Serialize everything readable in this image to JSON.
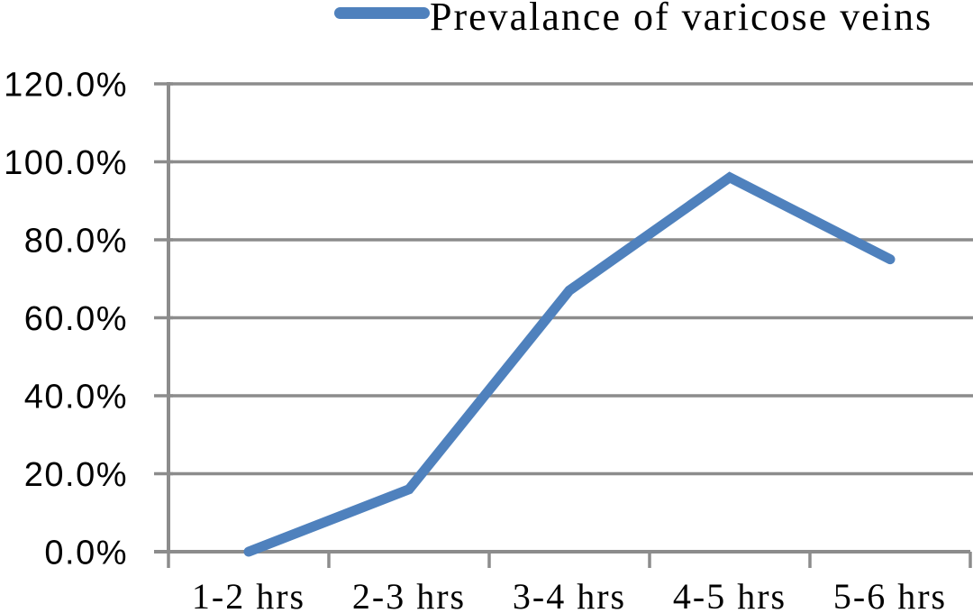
{
  "legend": {
    "label": "Prevalance of varicose veins"
  },
  "chart_data": {
    "type": "line",
    "title": "",
    "xlabel": "",
    "ylabel": "",
    "categories": [
      "1-2 hrs",
      "2-3 hrs",
      "3-4 hrs",
      "4-5 hrs",
      "5-6 hrs"
    ],
    "series": [
      {
        "name": "Prevalance of varicose veins",
        "values": [
          0.0,
          16.0,
          67.0,
          96.0,
          75.0
        ]
      }
    ],
    "ylim": [
      0,
      120
    ],
    "y_tick_values": [
      0,
      20,
      40,
      60,
      80,
      100,
      120
    ],
    "y_tick_labels": [
      "0.0%",
      "20.0%",
      "40.0%",
      "60.0%",
      "80.0%",
      "100.0%",
      "120.0%"
    ],
    "grid": true,
    "legend_position": "top",
    "colors": {
      "series": "#4F81BD",
      "grid": "#8C8C8C",
      "axis": "#8C8C8C",
      "text": "#000000",
      "background": "#FFFFFF"
    }
  }
}
